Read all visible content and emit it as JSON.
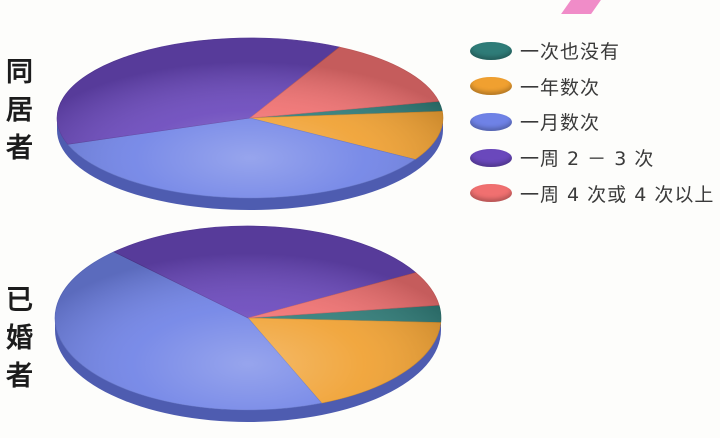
{
  "chart_data": [
    {
      "type": "pie",
      "row_label": "同居者",
      "categories": [
        "一次也没有",
        "一年数次",
        "一月数次",
        "一周 2 － 3 次",
        "一周 4 次或 4 次以上"
      ],
      "values": [
        2,
        10,
        36,
        38,
        14
      ],
      "colors": [
        "#2f7c78",
        "#f0a030",
        "#6f82e6",
        "#6a48bc",
        "#f07070"
      ],
      "legend_position": "right"
    },
    {
      "type": "pie",
      "row_label": "已婚者",
      "categories": [
        "一次也没有",
        "一年数次",
        "一月数次",
        "一周 2 － 3 次",
        "一周 4 次或 4 次以上"
      ],
      "values": [
        3,
        18,
        44,
        29,
        6
      ],
      "colors": [
        "#2f7c78",
        "#f0a030",
        "#6f82e6",
        "#6a48bc",
        "#f07070"
      ],
      "legend_position": "right"
    }
  ],
  "legend": [
    {
      "label": "一次也没有",
      "color": "#2f7c78"
    },
    {
      "label": "一年数次",
      "color": "#f0a030"
    },
    {
      "label": "一月数次",
      "color": "#6f82e6"
    },
    {
      "label": "一周 2 － 3 次",
      "color": "#6a48bc"
    },
    {
      "label": "一周 4 次或 4 次以上",
      "color": "#f07070"
    }
  ]
}
